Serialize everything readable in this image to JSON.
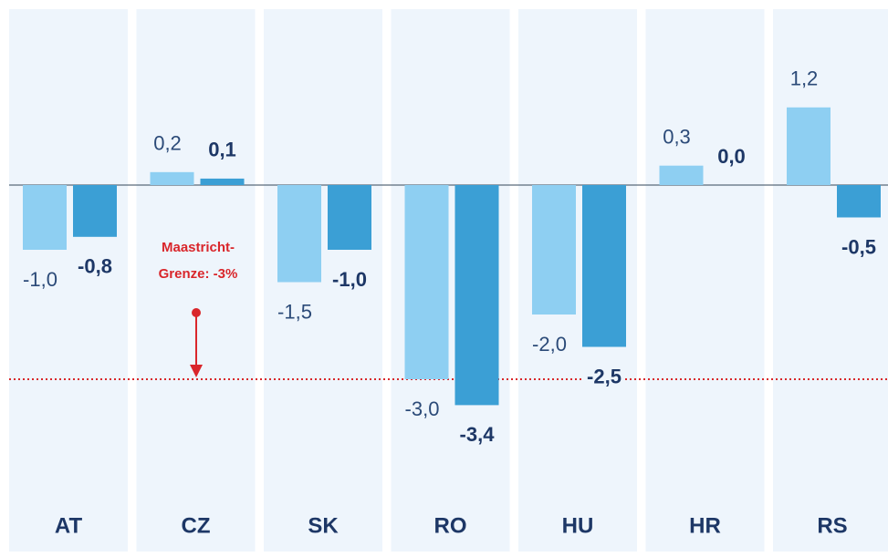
{
  "chart_data": {
    "type": "bar",
    "categories": [
      "AT",
      "CZ",
      "SK",
      "RO",
      "HU",
      "HR",
      "RS"
    ],
    "series": [
      {
        "color": "#8ecff2",
        "values": [
          -1.0,
          0.2,
          -1.5,
          -3.0,
          -2.0,
          0.3,
          1.2
        ],
        "value_labels": [
          "-1,0",
          "0,2",
          "-1,5",
          "-3,0",
          "-2,0",
          "0,3",
          "1,2"
        ]
      },
      {
        "color": "#3b9fd5",
        "values": [
          -0.8,
          0.1,
          -1.0,
          -3.4,
          -2.5,
          0.0,
          -0.5
        ],
        "value_labels": [
          "-0,8",
          "0,1",
          "-1,0",
          "-3,4",
          "-2,5",
          "0,0",
          "-0,5"
        ]
      }
    ],
    "ylim": [
      -4.5,
      2.7
    ],
    "reference_line": {
      "value": -3,
      "color": "#d9262b",
      "label": [
        "Maastricht-",
        "Grenze: -3%"
      ]
    }
  }
}
